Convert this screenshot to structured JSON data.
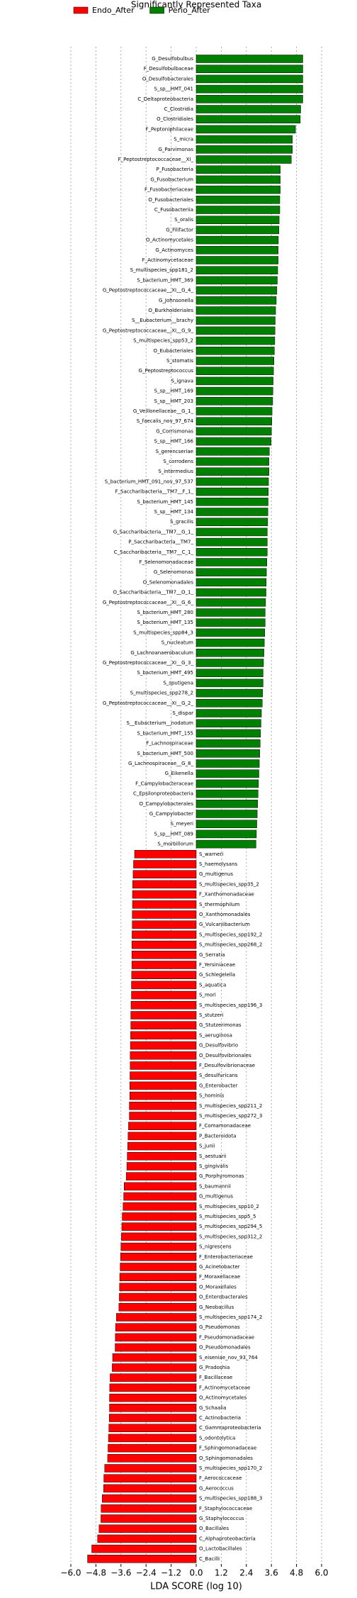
{
  "chart_data": {
    "type": "bar",
    "orientation": "horizontal",
    "title": "Significantly Represented Taxa",
    "xlabel": "LDA SCORE (log 10)",
    "xlim": [
      -6.0,
      6.0
    ],
    "xticks": [
      {
        "value": -6.0,
        "label": "−6.0"
      },
      {
        "value": -4.8,
        "label": "−4.8"
      },
      {
        "value": -3.6,
        "label": "−3.6"
      },
      {
        "value": -2.4,
        "label": "−2.4"
      },
      {
        "value": -1.2,
        "label": "−1.2"
      },
      {
        "value": 0,
        "label": "0.0"
      },
      1.2,
      2.4,
      3.6,
      4.8,
      {
        "value": 6.0,
        "label": "6.0"
      }
    ],
    "grid": true,
    "legend": "top-left",
    "series": [
      {
        "name": "Perio_After",
        "color": "#008000",
        "categories": [
          "G_Desulfobulbus",
          "F_Desulfobulbaceae",
          "O_Desulfobacterales",
          "S_sp__HMT_041",
          "C_Deltaproteobacteria",
          "C_Clostridia",
          "O_Clostridiales",
          "F_Peptoniphilaceae",
          "S_micra",
          "G_Parvimonas",
          "F_Peptostreptococcaceae__XI_",
          "P_Fusobacteria",
          "G_Fusobacterium",
          "F_Fusobacteriaceae",
          "O_Fusobacteriales",
          "C_Fusobacteriia",
          "S_oralis",
          "G_Filifactor",
          "O_Actinomycetales",
          "G_Actinomyces",
          "F_Actinomycetaceae",
          "S_multispecies_spp181_2",
          "S_bacterium_HMT_369",
          "G_Peptostreptococcaceae__XI__G_4_",
          "G_Johnsonella",
          "O_Burkholderiales",
          "S__Eubacterium__brachy",
          "G_Peptostreptococcaceae__XI__G_9_",
          "S_multispecies_spp53_2",
          "O_Eubacteriales",
          "S_stomatis",
          "G_Peptostreptococcus",
          "S_ignava",
          "S_sp__HMT_169",
          "S_sp__HMT_203",
          "G_Veillonellaceae__G_1_",
          "S_faecalis_nov_97_674",
          "G_Corrismonas",
          "S_sp__HMT_166",
          "S_gerencseriae",
          "S_corrodens",
          "S_intermedius",
          "S_bacterium_HMT_091_nov_97_537",
          "F_Saccharibacteria__TM7__F_1_",
          "S_bacterium_HMT_145",
          "S_sp__HMT_134",
          "S_gracilis",
          "G_Saccharibacteria__TM7__G_1_",
          "P_Saccharibacteria__TM7_",
          "C_Saccharibacteria__TM7__C_1_",
          "F_Selenomonadaceae",
          "G_Selenomonas",
          "O_Selenomonadales",
          "O_Saccharibacteria__TM7__O_1_",
          "G_Peptostreptococcaceae__XI__G_6_",
          "S_bacterium_HMT_280",
          "S_bacterium_HMT_135",
          "S_multispecies_spp84_3",
          "S_nucleatum",
          "G_Lachnoanaerobaculum",
          "G_Peptostreptococcaceae__XI__G_3_",
          "S_bacterium_HMT_495",
          "S_sputigena",
          "S_multispecies_spp278_2",
          "G_Peptostreptococcaceae__XI__G_2_",
          "S_dispar",
          "S__Eubacterium__nodatum",
          "S_bacterium_HMT_155",
          "F_Lachnospiraceae",
          "S_bacterium_HMT_500",
          "G_Lachnospiraceae__G_8_",
          "G_Eikenella",
          "F_Campylobacteraceae",
          "C_Epsilonproteobacteria",
          "O_Campylobacterales",
          "G_Campylobacter",
          "S_meyeri",
          "S_sp__HMT_089",
          "S_morbillorum"
        ],
        "values": [
          5.1,
          5.1,
          5.1,
          5.1,
          5.1,
          5.0,
          4.98,
          4.75,
          4.6,
          4.6,
          4.55,
          4.02,
          4.02,
          4.02,
          4.0,
          4.0,
          3.97,
          3.96,
          3.93,
          3.92,
          3.92,
          3.9,
          3.88,
          3.86,
          3.83,
          3.8,
          3.78,
          3.77,
          3.76,
          3.74,
          3.72,
          3.7,
          3.68,
          3.67,
          3.66,
          3.63,
          3.62,
          3.6,
          3.58,
          3.5,
          3.48,
          3.48,
          3.46,
          3.45,
          3.44,
          3.43,
          3.42,
          3.4,
          3.4,
          3.4,
          3.38,
          3.36,
          3.35,
          3.34,
          3.32,
          3.3,
          3.3,
          3.28,
          3.26,
          3.24,
          3.22,
          3.2,
          3.2,
          3.18,
          3.16,
          3.12,
          3.1,
          3.08,
          3.06,
          3.04,
          3.02,
          3.0,
          2.98,
          2.96,
          2.94,
          2.92,
          2.9,
          2.88,
          2.86
        ]
      },
      {
        "name": "Endo_After",
        "color": "#ff0000",
        "categories": [
          "S_warneri",
          "S_haemolysans",
          "G_multigenus",
          "S_multispecies_spp35_2",
          "F_Xanthomonadaceae",
          "S_thermophilum",
          "O_Xanthomonadales",
          "G_Vulcaniibacterium",
          "S_multispecies_spp192_2",
          "S_multispecies_spp268_2",
          "G_Serratia",
          "F_Yersiniaceae",
          "G_Schlegelella",
          "S_aquatica",
          "S_mori",
          "S_multispecies_spp196_3",
          "S_stutzeri",
          "G_Stutzerimonas",
          "S_aeruginosa",
          "G_Desulfovibrio",
          "O_Desulfovibrionales",
          "F_Desulfovibrionaceae",
          "S_desulfuricans",
          "G_Enterobacter",
          "S_hominis",
          "S_multispecies_spp211_2",
          "S_multispecies_spp272_3",
          "F_Comamonadaceae",
          "P_Bacteroidota",
          "S_junii",
          "S_aestuarii",
          "S_gingivalis",
          "G_Porphyromonas",
          "S_baumannii",
          "G_multigenus",
          "S_multispecies_spp10_2",
          "S_multispecies_spp5_5",
          "S_multispecies_spp294_5",
          "S_multispecies_spp312_2",
          "S_nigrescens",
          "F_Enterobacteriaceae",
          "G_Acinetobacter",
          "F_Moraxellaceae",
          "O_Moraxellales",
          "O_Enterobacterales",
          "G_Neobacillus",
          "S_multispecies_spp174_2",
          "G_Pseudomonas",
          "F_Pseudomonadaceae",
          "O_Pseudomonadales",
          "S_eiseniae_nov_93_764",
          "G_Pradoshia",
          "F_Bacillaceae",
          "F_Actinomycetaceae",
          "O_Actinomycetales",
          "G_Schaalia",
          "C_Actinobacteria",
          "C_Gammaproteobacteria",
          "S_odontolytica",
          "F_Sphingomonadaceae",
          "O_Sphingomonadales",
          "S_multispecies_spp170_2",
          "F_Aerococcaceae",
          "G_Aerococcus",
          "S_multispecies_spp188_3",
          "F_Staphylococcaceae",
          "G_Staphylococcus",
          "O_Bacillales",
          "C_Alphaproteobacteria",
          "O_Lactobacillales",
          "C_Bacilli"
        ],
        "values": [
          -2.95,
          -3.0,
          -3.02,
          -3.04,
          -3.05,
          -3.05,
          -3.06,
          -3.06,
          -3.07,
          -3.08,
          -3.08,
          -3.08,
          -3.09,
          -3.1,
          -3.1,
          -3.12,
          -3.13,
          -3.13,
          -3.14,
          -3.15,
          -3.16,
          -3.16,
          -3.17,
          -3.18,
          -3.18,
          -3.2,
          -3.2,
          -3.24,
          -3.26,
          -3.28,
          -3.3,
          -3.32,
          -3.35,
          -3.45,
          -3.47,
          -3.5,
          -3.54,
          -3.56,
          -3.58,
          -3.6,
          -3.62,
          -3.64,
          -3.66,
          -3.67,
          -3.68,
          -3.7,
          -3.82,
          -3.86,
          -3.87,
          -3.88,
          -4.0,
          -4.02,
          -4.12,
          -4.14,
          -4.15,
          -4.15,
          -4.16,
          -4.18,
          -4.2,
          -4.22,
          -4.24,
          -4.38,
          -4.42,
          -4.43,
          -4.5,
          -4.55,
          -4.56,
          -4.65,
          -4.72,
          -5.0,
          -5.2
        ]
      }
    ]
  }
}
